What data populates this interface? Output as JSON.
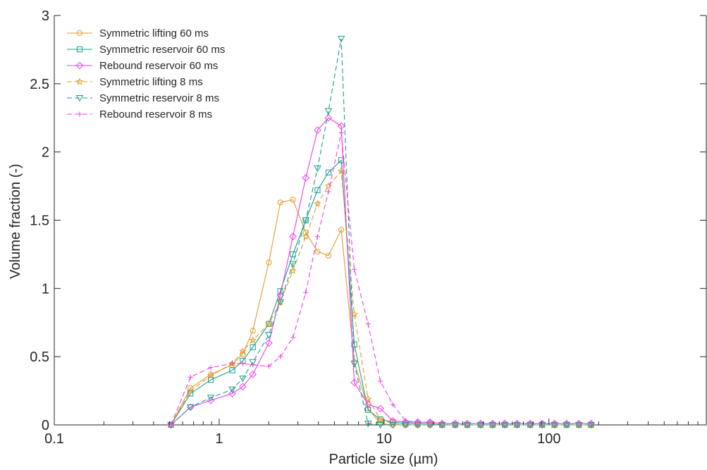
{
  "chart_data": {
    "type": "line",
    "title": "",
    "xlabel": "Particle size (µm)",
    "ylabel": "Volume fraction (-)",
    "xscale": "log",
    "xlim": [
      0.1,
      900
    ],
    "ylim": [
      0,
      3
    ],
    "xticks": [
      0.1,
      1,
      10,
      100
    ],
    "xtick_labels": [
      "0.1",
      "1",
      "10",
      "100"
    ],
    "yticks": [
      0,
      0.5,
      1,
      1.5,
      2,
      2.5,
      3
    ],
    "ytick_labels": [
      "0",
      "0.5",
      "1",
      "1.5",
      "2",
      "2.5",
      "3"
    ],
    "grid": false,
    "legend_position": "top-left",
    "x": [
      0.51,
      0.67,
      0.89,
      1.2,
      1.39,
      1.6,
      2.0,
      2.35,
      2.8,
      3.35,
      3.95,
      4.6,
      5.5,
      6.6,
      8.0,
      9.5,
      11.3,
      13.5,
      16.0,
      19.0,
      22.5,
      27.0,
      32.0,
      38.5,
      45.5,
      54.0,
      64.0,
      77.0,
      91.0,
      108.0,
      128.0,
      152.0,
      180.0
    ],
    "series": [
      {
        "name": "Symmetric lifting 60 ms",
        "color": "#e19a2e",
        "dash": "solid",
        "marker": "circle",
        "values": [
          0.0,
          0.27,
          0.37,
          0.44,
          0.52,
          0.69,
          1.19,
          1.63,
          1.65,
          1.41,
          1.27,
          1.24,
          1.43,
          0.46,
          0.12,
          0.01,
          0.0,
          0.0,
          0.0,
          0.0,
          0.0,
          0.0,
          0.0,
          0.0,
          0.0,
          0.0,
          0.0,
          0.0,
          0.0,
          0.0,
          0.0,
          0.0,
          0.0
        ]
      },
      {
        "name": "Symmetric reservoir 60 ms",
        "color": "#1a9e8c",
        "dash": "solid",
        "marker": "square",
        "values": [
          0.0,
          0.23,
          0.33,
          0.4,
          0.47,
          0.57,
          0.74,
          0.98,
          1.25,
          1.5,
          1.72,
          1.85,
          1.94,
          0.59,
          0.11,
          0.04,
          0.02,
          0.01,
          0.01,
          0.01,
          0.0,
          0.0,
          0.0,
          0.0,
          0.0,
          0.0,
          0.0,
          0.0,
          0.0,
          0.0,
          0.0,
          0.0,
          0.0
        ]
      },
      {
        "name": "Rebound reservoir 60 ms",
        "color": "#f03cf0",
        "dash": "solid",
        "marker": "diamond",
        "values": [
          0.0,
          0.13,
          0.18,
          0.23,
          0.28,
          0.37,
          0.6,
          0.95,
          1.38,
          1.81,
          2.16,
          2.25,
          2.19,
          0.31,
          0.15,
          0.12,
          0.03,
          0.02,
          0.02,
          0.02,
          0.01,
          0.01,
          0.01,
          0.01,
          0.01,
          0.01,
          0.01,
          0.01,
          0.01,
          0.01,
          0.01,
          0.01,
          0.01
        ]
      },
      {
        "name": "Symmetric lifting 8 ms",
        "color": "#e19a2e",
        "dash": "dashed",
        "marker": "star",
        "values": [
          0.0,
          0.25,
          0.36,
          0.45,
          0.54,
          0.62,
          0.74,
          0.9,
          1.13,
          1.38,
          1.62,
          1.75,
          1.86,
          0.81,
          0.19,
          0.04,
          0.01,
          0.0,
          0.0,
          0.0,
          0.0,
          0.0,
          0.0,
          0.0,
          0.0,
          0.0,
          0.0,
          0.0,
          0.0,
          0.0,
          0.0,
          0.0,
          0.0
        ]
      },
      {
        "name": "Symmetric reservoir 8 ms",
        "color": "#1a9e8c",
        "dash": "dashed",
        "marker": "triangle-down",
        "values": [
          0.0,
          0.13,
          0.2,
          0.26,
          0.34,
          0.46,
          0.66,
          0.9,
          1.18,
          1.5,
          1.88,
          2.3,
          2.83,
          0.45,
          0.01,
          0.0,
          0.0,
          0.0,
          0.0,
          0.0,
          0.0,
          0.0,
          0.0,
          0.0,
          0.0,
          0.0,
          0.0,
          0.0,
          0.0,
          0.0,
          0.0,
          0.0,
          0.0
        ]
      },
      {
        "name": "Rebound reservoir 8 ms",
        "color": "#f03cf0",
        "dash": "dashed",
        "marker": "plus",
        "values": [
          0.0,
          0.35,
          0.42,
          0.45,
          0.45,
          0.44,
          0.43,
          0.5,
          0.64,
          0.97,
          1.38,
          1.71,
          2.14,
          1.14,
          0.74,
          0.32,
          0.15,
          0.03,
          0.02,
          0.02,
          0.01,
          0.01,
          0.01,
          0.01,
          0.01,
          0.01,
          0.01,
          0.01,
          0.01,
          0.01,
          0.01,
          0.01,
          0.01
        ]
      }
    ]
  }
}
